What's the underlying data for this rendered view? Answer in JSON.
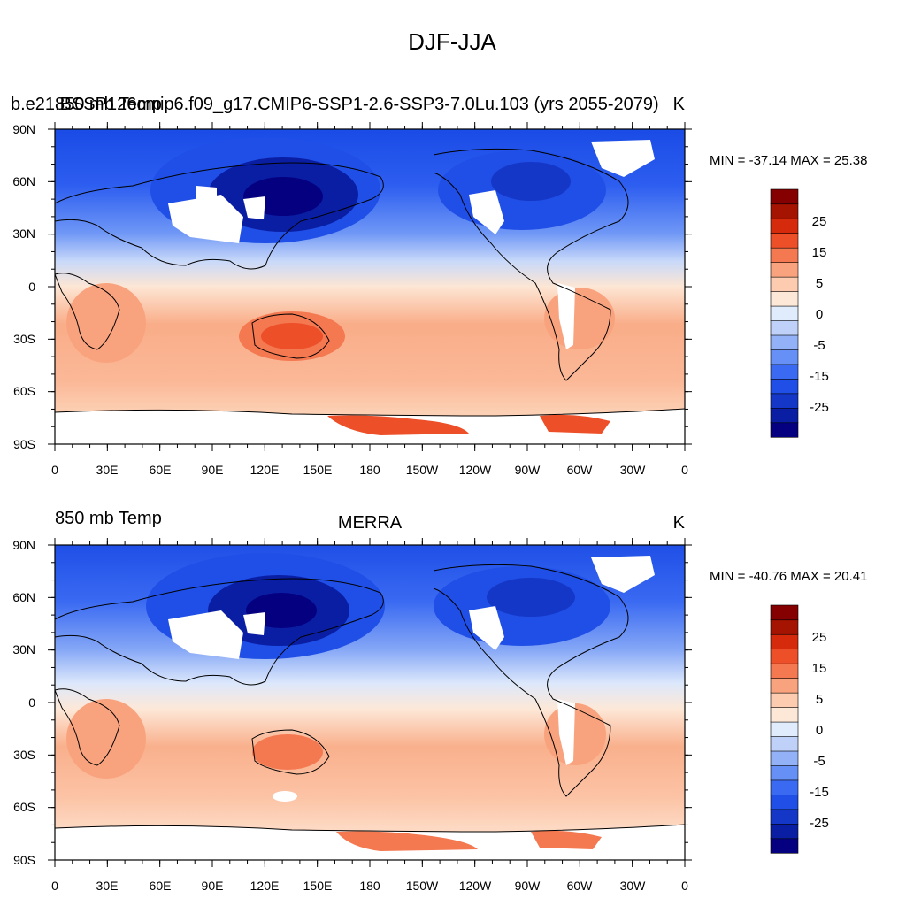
{
  "figure": {
    "title": "DJF-JJA"
  },
  "lat_labels": [
    "90N",
    "60N",
    "30N",
    "0",
    "30S",
    "60S",
    "90S"
  ],
  "lon_labels": [
    "0",
    "30E",
    "60E",
    "90E",
    "120E",
    "150E",
    "180",
    "150W",
    "120W",
    "90W",
    "60W",
    "30W",
    "0"
  ],
  "colorbar": {
    "labels": [
      "25",
      "15",
      "5",
      "0",
      "-5",
      "-15",
      "-25"
    ],
    "colors": [
      "#050080",
      "#0a1ea4",
      "#1537c8",
      "#1f4fe6",
      "#3a6af2",
      "#6690f5",
      "#93b1f6",
      "#bfd1f8",
      "#e0ebfb",
      "#fde8d8",
      "#fccbb0",
      "#f9a37e",
      "#f47850",
      "#ed4f28",
      "#d52a0c",
      "#a41400",
      "#850000"
    ]
  },
  "panels": [
    {
      "left_title": "b.e21.BSSP126cmip6.f09_g17.CMIP6-SSP1-2.6-SSP3-7.0Lu.103 (yrs 2055-2079)",
      "left_overlay": "850 mb Temp",
      "center_title": "",
      "units": "K",
      "stats": "MIN = -37.14 MAX =  25.38"
    },
    {
      "left_title": "850 mb Temp",
      "left_overlay": "",
      "center_title": "MERRA",
      "units": "K",
      "stats": "MIN = -40.76 MAX =  20.41"
    }
  ]
}
